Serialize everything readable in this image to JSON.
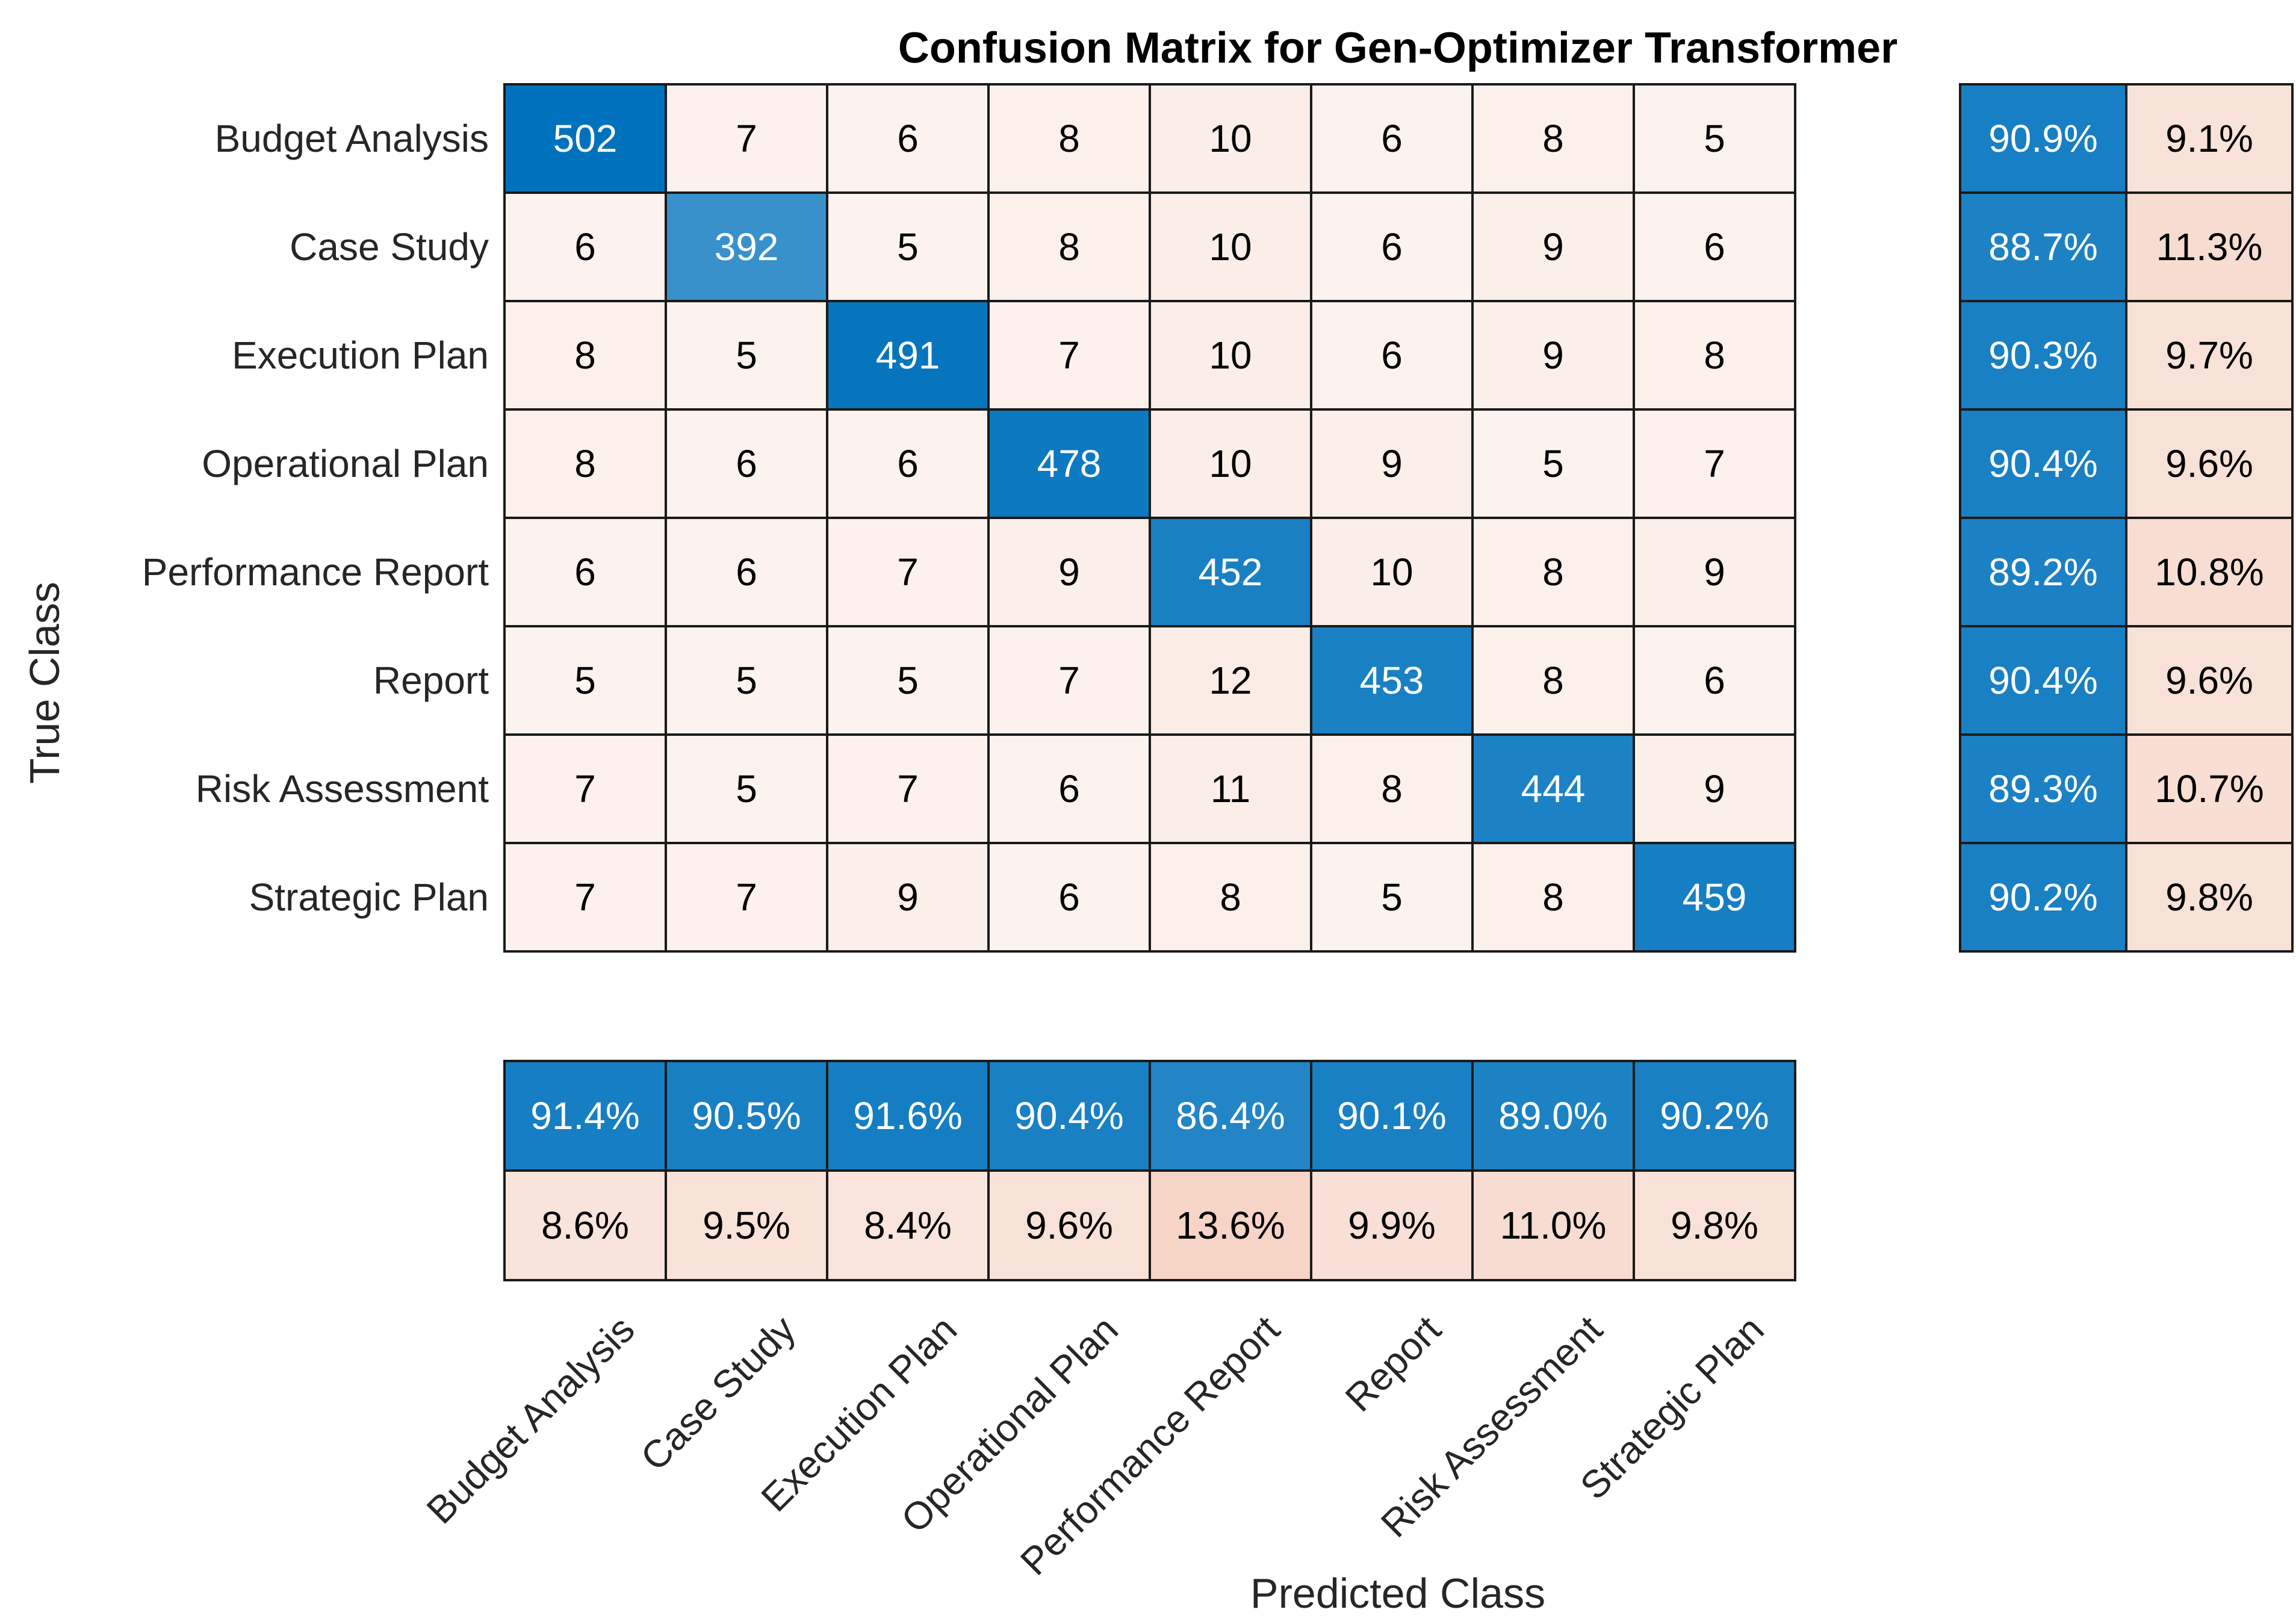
{
  "title": "Confusion Matrix for Gen-Optimizer Transformer",
  "xlabel": "Predicted Class",
  "ylabel": "True Class",
  "chart_data": {
    "type": "heatmap",
    "subtype": "confusion-matrix",
    "title": "Confusion Matrix for Gen-Optimizer Transformer",
    "xlabel": "Predicted Class",
    "ylabel": "True Class",
    "classes": [
      "Budget Analysis",
      "Case Study",
      "Execution Plan",
      "Operational Plan",
      "Performance Report",
      "Report",
      "Risk Assessment",
      "Strategic Plan"
    ],
    "matrix": [
      [
        502,
        7,
        6,
        8,
        10,
        6,
        8,
        5
      ],
      [
        6,
        392,
        5,
        8,
        10,
        6,
        9,
        6
      ],
      [
        8,
        5,
        491,
        7,
        10,
        6,
        9,
        8
      ],
      [
        8,
        6,
        6,
        478,
        10,
        9,
        5,
        7
      ],
      [
        6,
        6,
        7,
        9,
        452,
        10,
        8,
        9
      ],
      [
        5,
        5,
        5,
        7,
        12,
        453,
        8,
        6
      ],
      [
        7,
        5,
        7,
        6,
        11,
        8,
        444,
        9
      ],
      [
        7,
        7,
        9,
        6,
        8,
        5,
        8,
        459
      ]
    ],
    "row_summary": [
      [
        "90.9%",
        "9.1%"
      ],
      [
        "88.7%",
        "11.3%"
      ],
      [
        "90.3%",
        "9.7%"
      ],
      [
        "90.4%",
        "9.6%"
      ],
      [
        "89.2%",
        "10.8%"
      ],
      [
        "90.4%",
        "9.6%"
      ],
      [
        "89.3%",
        "10.7%"
      ],
      [
        "90.2%",
        "9.8%"
      ]
    ],
    "col_summary": [
      [
        "91.4%",
        "90.5%",
        "91.6%",
        "90.4%",
        "86.4%",
        "90.1%",
        "89.0%",
        "90.2%"
      ],
      [
        "8.6%",
        "9.5%",
        "8.4%",
        "9.6%",
        "13.6%",
        "9.9%",
        "11.0%",
        "9.8%"
      ]
    ],
    "layout": {
      "row_summary_position": "right",
      "col_summary_position": "bottom",
      "x_tick_rotation_deg": 45,
      "grid_on": true
    },
    "colors": {
      "diagonal_base": "#0072BD",
      "off_diagonal_base": "#D95319",
      "grid_line": "#1a1a1a",
      "text_dark": "#262626",
      "text_light": "#ffffff",
      "background": "#ffffff"
    }
  }
}
